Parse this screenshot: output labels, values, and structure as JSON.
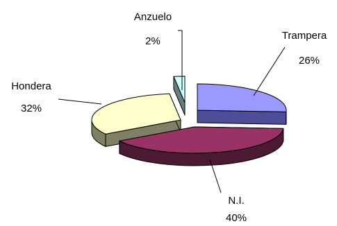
{
  "chart_data": {
    "type": "pie",
    "style": "3d-exploded",
    "grid": false,
    "legend": "none",
    "slices": [
      {
        "name": "Trampera",
        "value": 26,
        "label": "26%",
        "color_top": "#9999ff",
        "color_side": "#4d4d99"
      },
      {
        "name": "N.I.",
        "value": 40,
        "label": "40%",
        "color_top": "#993366",
        "color_side": "#4d1a33"
      },
      {
        "name": "Hondera",
        "value": 32,
        "label": "32%",
        "color_top": "#ffffcc",
        "color_side": "#808066"
      },
      {
        "name": "Anzuelo",
        "value": 2,
        "label": "2%",
        "color_top": "#ccffff",
        "color_side": "#668080"
      }
    ]
  }
}
